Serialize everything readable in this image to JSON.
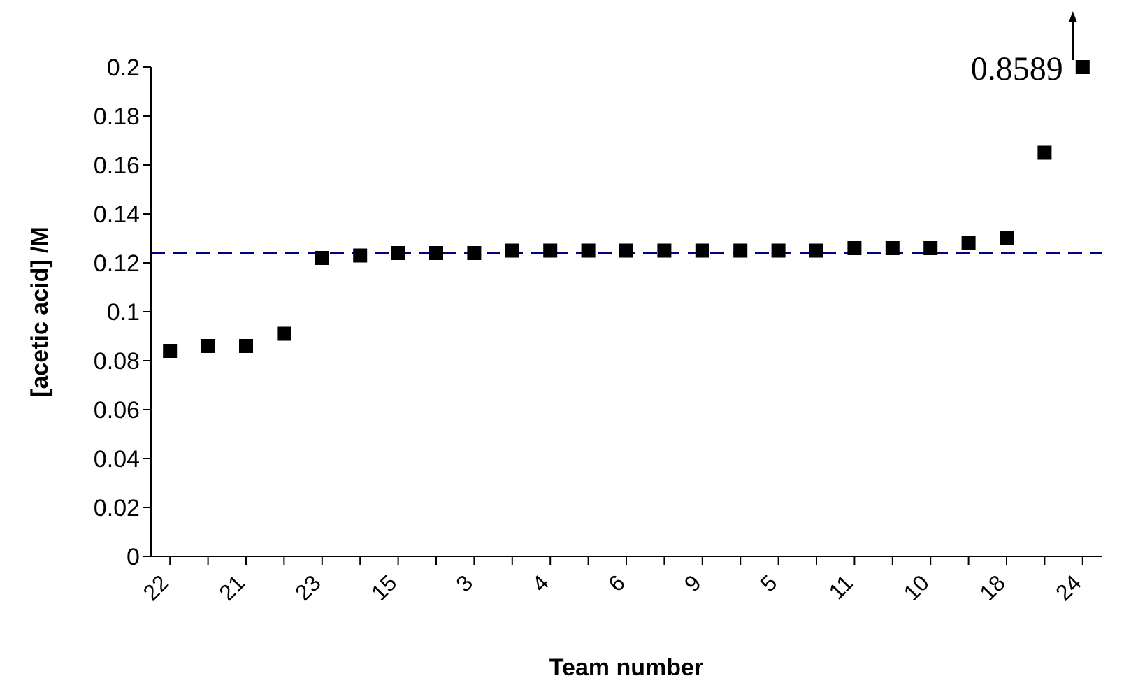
{
  "chart_data": {
    "type": "scatter",
    "xlabel": "Team number",
    "ylabel": "[acetic acid] /M",
    "categories": [
      "22",
      null,
      "21",
      null,
      "23",
      null,
      "15",
      null,
      "3",
      null,
      "4",
      null,
      "6",
      null,
      "9",
      null,
      "5",
      null,
      "11",
      null,
      "10",
      null,
      "18",
      null,
      "24"
    ],
    "series": [
      {
        "color": "#000000",
        "values": [
          0.084,
          0.086,
          0.086,
          0.091,
          0.122,
          0.123,
          0.124,
          0.124,
          0.124,
          0.125,
          0.125,
          0.125,
          0.125,
          0.125,
          0.125,
          0.125,
          0.125,
          0.125,
          0.126,
          0.126,
          0.126,
          0.128,
          0.13,
          0.165,
          null
        ]
      }
    ],
    "marker": "square",
    "ylim": [
      0,
      0.2
    ],
    "yticks": [
      0,
      0.02,
      0.04,
      0.06,
      0.08,
      0.1,
      0.12,
      0.14,
      0.16,
      0.18,
      0.2
    ],
    "ref_lines": [
      {
        "axis": "y",
        "value": 0.124,
        "color": "#000080",
        "line_style": "dashed"
      }
    ],
    "annotations": [
      "0.8589"
    ],
    "grid": false,
    "legend": false
  }
}
